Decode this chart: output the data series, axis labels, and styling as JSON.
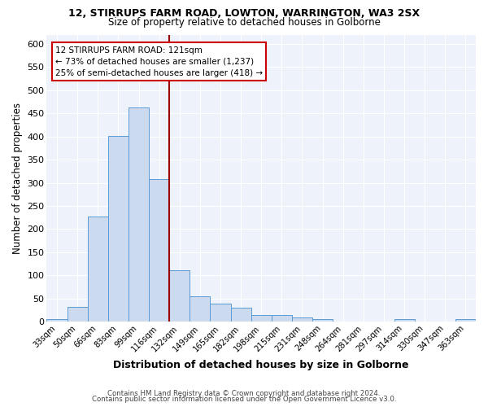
{
  "title1": "12, STIRRUPS FARM ROAD, LOWTON, WARRINGTON, WA3 2SX",
  "title2": "Size of property relative to detached houses in Golborne",
  "xlabel": "Distribution of detached houses by size in Golborne",
  "ylabel": "Number of detached properties",
  "categories": [
    "33sqm",
    "50sqm",
    "66sqm",
    "83sqm",
    "99sqm",
    "116sqm",
    "132sqm",
    "149sqm",
    "165sqm",
    "182sqm",
    "198sqm",
    "215sqm",
    "231sqm",
    "248sqm",
    "264sqm",
    "281sqm",
    "297sqm",
    "314sqm",
    "330sqm",
    "347sqm",
    "363sqm"
  ],
  "values": [
    5,
    32,
    228,
    402,
    462,
    308,
    112,
    55,
    40,
    30,
    14,
    14,
    10,
    5,
    0,
    0,
    0,
    5,
    0,
    0,
    5
  ],
  "bar_color": "#ccdaf0",
  "bar_edge_color": "#5b9bd5",
  "vline_x": 5.5,
  "vline_color": "#990000",
  "annotation_line1": "12 STIRRUPS FARM ROAD: 121sqm",
  "annotation_line2": "← 73% of detached houses are smaller (1,237)",
  "annotation_line3": "25% of semi-detached houses are larger (418) →",
  "annotation_box_color": "white",
  "annotation_box_edge": "#cc0000",
  "ylim": [
    0,
    620
  ],
  "yticks": [
    0,
    50,
    100,
    150,
    200,
    250,
    300,
    350,
    400,
    450,
    500,
    550,
    600
  ],
  "bg_color": "#eef2fb",
  "footer1": "Contains HM Land Registry data © Crown copyright and database right 2024.",
  "footer2": "Contains public sector information licensed under the Open Government Licence v3.0."
}
